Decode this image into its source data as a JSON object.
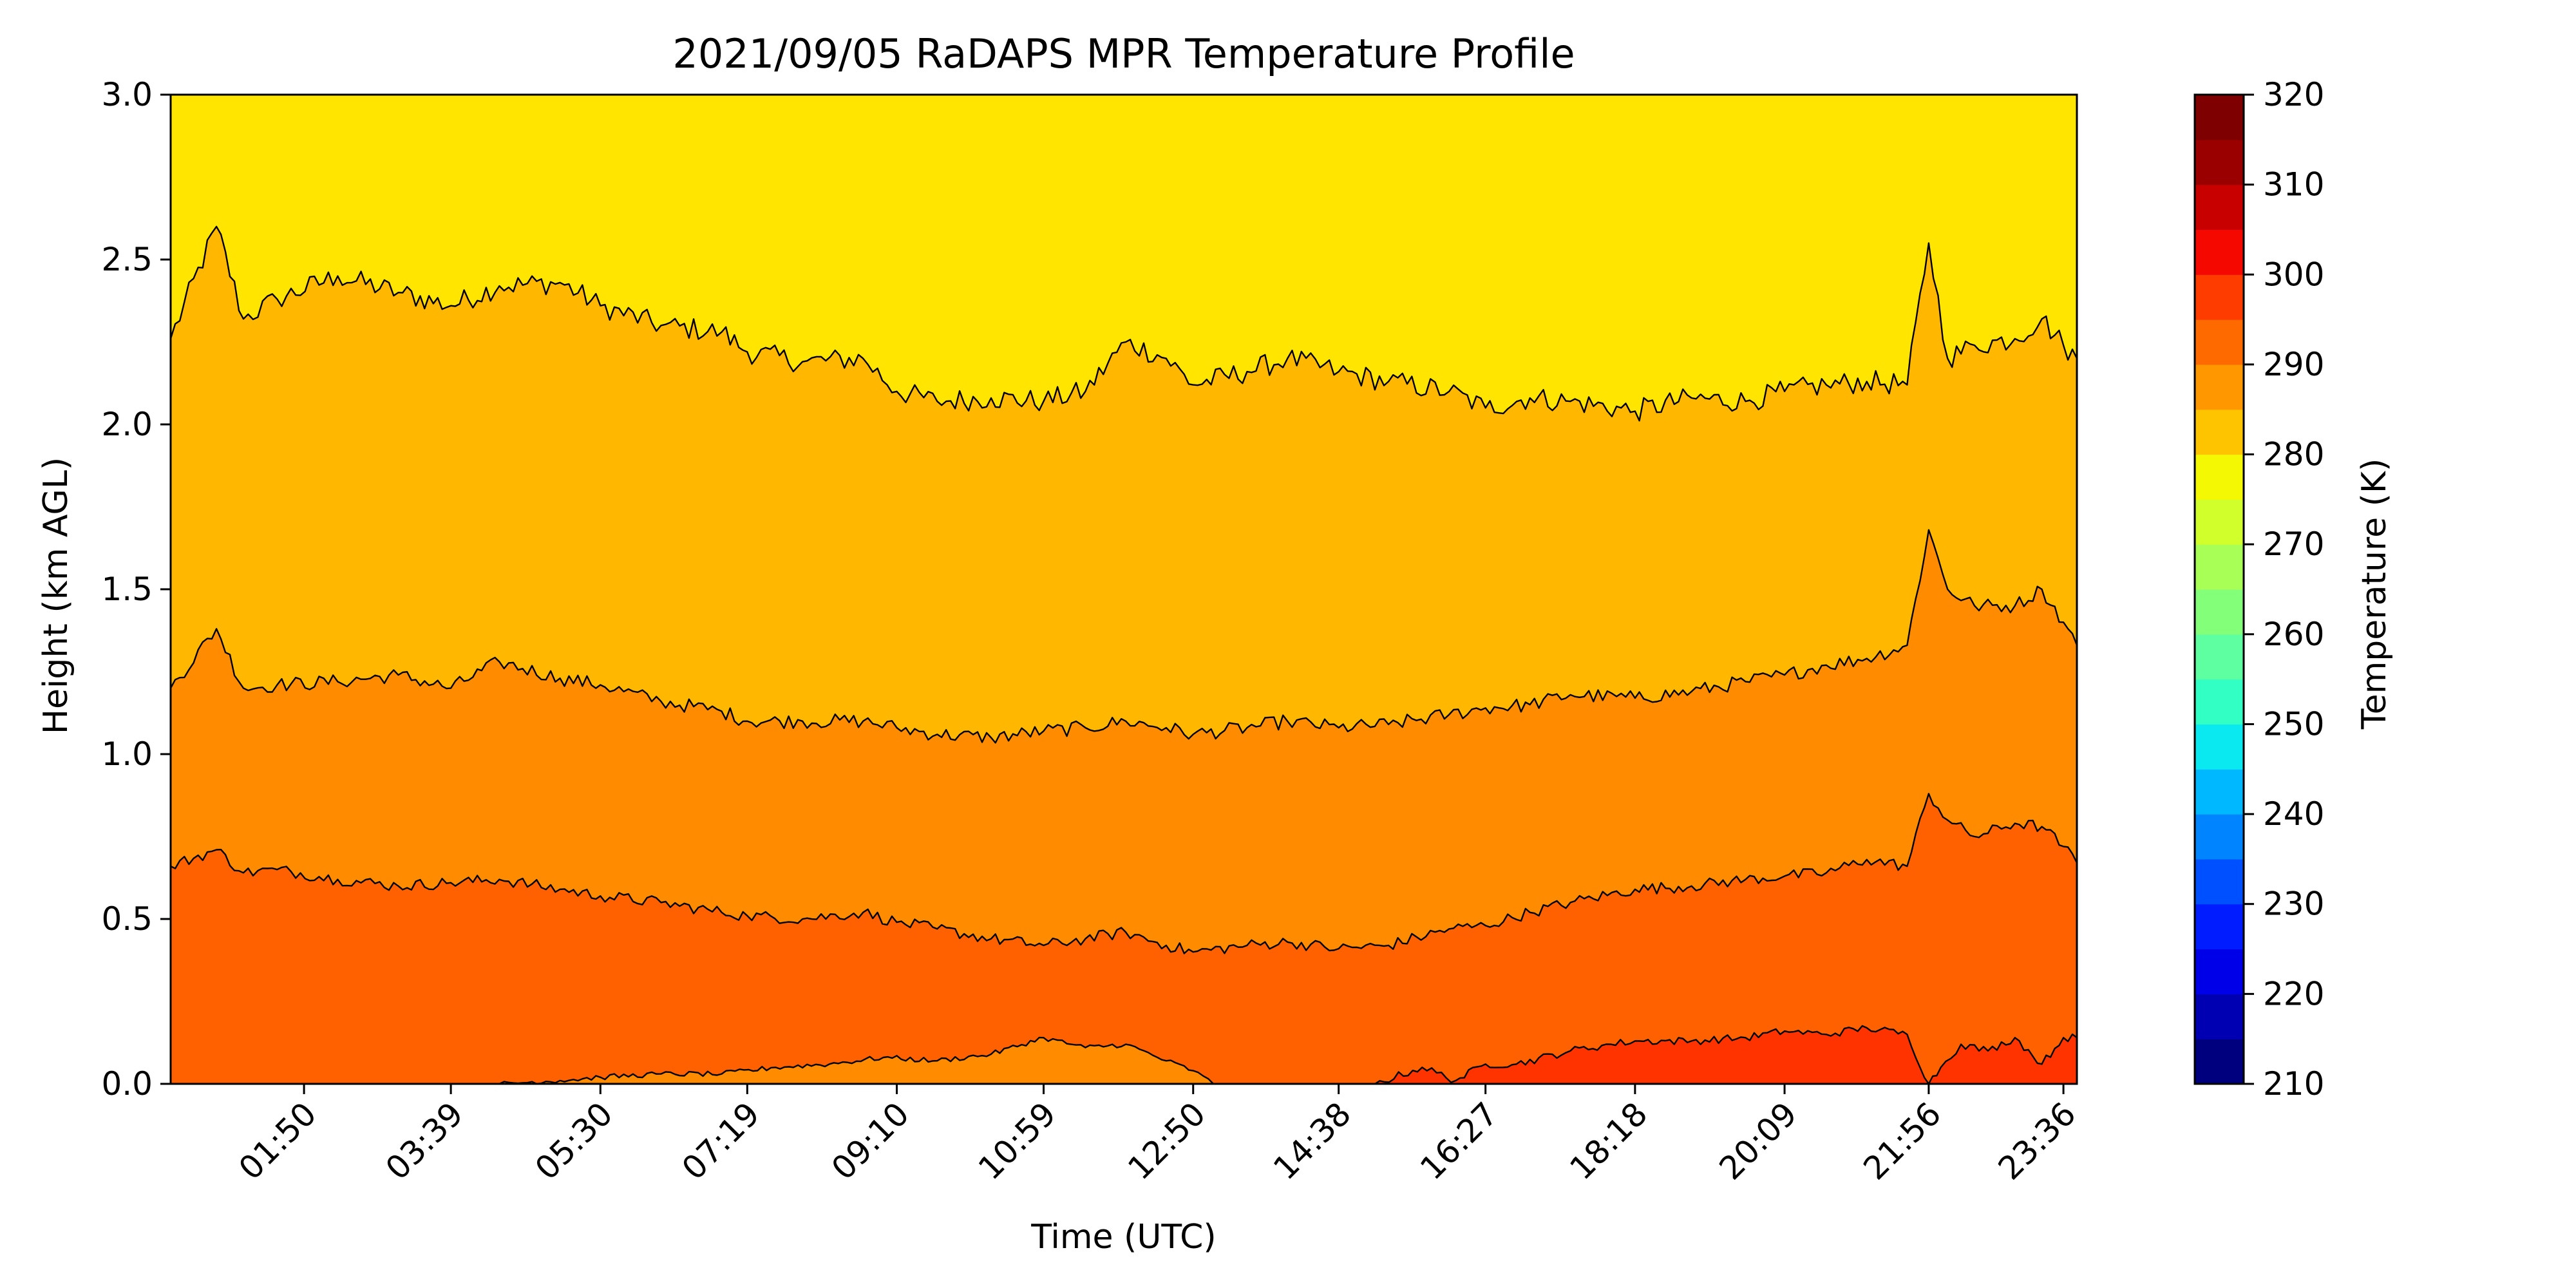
{
  "chart_data": {
    "type": "contour",
    "title": "2021/09/05 RaDAPS MPR Temperature Profile",
    "xlabel": "Time (UTC)",
    "ylabel": "Height (km AGL)",
    "xlim": [
      "00:11",
      "23:46"
    ],
    "ylim": [
      0.0,
      3.0
    ],
    "x_ticks": [
      "01:50",
      "03:39",
      "05:30",
      "07:19",
      "09:10",
      "10:59",
      "12:50",
      "14:38",
      "16:27",
      "18:18",
      "20:09",
      "21:56",
      "23:36"
    ],
    "y_ticks": [
      "0.0",
      "0.5",
      "1.0",
      "1.5",
      "2.0",
      "2.5",
      "3.0"
    ],
    "colorbar": {
      "label": "Temperature (K)",
      "range": [
        210,
        320
      ],
      "step": 5,
      "ticks": [
        "210",
        "220",
        "230",
        "240",
        "250",
        "260",
        "270",
        "280",
        "290",
        "300",
        "310",
        "320"
      ],
      "colors": [
        "#00007f",
        "#0000b2",
        "#0000e8",
        "#001cff",
        "#0050ff",
        "#0084ff",
        "#00b8ff",
        "#0ae8f0",
        "#32ffc4",
        "#5effa0",
        "#84ff7a",
        "#a8ff56",
        "#d0ff2c",
        "#f4f802",
        "#ffc400",
        "#ff9800",
        "#ff6a00",
        "#ff3c00",
        "#f40800",
        "#c80000",
        "#9a0000",
        "#7f0000"
      ]
    },
    "regions": [
      {
        "range_K": [
          280,
          285
        ],
        "color": "#ffe500"
      },
      {
        "range_K": [
          285,
          290
        ],
        "color": "#ffb700"
      },
      {
        "range_K": [
          290,
          295
        ],
        "color": "#ff8c00"
      },
      {
        "range_K": [
          295,
          300
        ],
        "color": "#ff6100"
      },
      {
        "range_K": [
          300,
          305
        ],
        "color": "#ff3300"
      }
    ],
    "contours": [
      {
        "level_K": 285,
        "x": [
          "00:11",
          "00:45",
          "01:05",
          "01:30",
          "02:15",
          "03:00",
          "03:39",
          "04:15",
          "05:00",
          "05:30",
          "06:15",
          "07:00",
          "07:19",
          "08:00",
          "08:45",
          "09:10",
          "09:40",
          "10:20",
          "10:59",
          "11:30",
          "12:00",
          "12:30",
          "12:50",
          "13:30",
          "14:00",
          "14:38",
          "15:15",
          "16:00",
          "16:27",
          "17:00",
          "17:30",
          "18:18",
          "19:00",
          "19:40",
          "20:09",
          "20:40",
          "21:10",
          "21:40",
          "21:56",
          "22:10",
          "22:30",
          "23:00",
          "23:20",
          "23:36",
          "23:46"
        ],
        "y": [
          2.26,
          2.6,
          2.32,
          2.38,
          2.45,
          2.4,
          2.36,
          2.42,
          2.43,
          2.36,
          2.3,
          2.28,
          2.22,
          2.19,
          2.2,
          2.1,
          2.07,
          2.08,
          2.07,
          2.1,
          2.25,
          2.2,
          2.12,
          2.16,
          2.2,
          2.16,
          2.13,
          2.1,
          2.05,
          2.08,
          2.07,
          2.04,
          2.08,
          2.07,
          2.1,
          2.12,
          2.13,
          2.12,
          2.55,
          2.2,
          2.24,
          2.26,
          2.32,
          2.24,
          2.2
        ]
      },
      {
        "level_K": 290,
        "x": [
          "00:11",
          "00:45",
          "01:05",
          "01:30",
          "02:15",
          "03:00",
          "03:39",
          "04:15",
          "05:00",
          "05:30",
          "06:15",
          "07:00",
          "07:19",
          "08:00",
          "08:45",
          "09:10",
          "09:40",
          "10:20",
          "10:59",
          "11:30",
          "12:00",
          "12:30",
          "12:50",
          "13:30",
          "14:00",
          "14:38",
          "15:15",
          "16:00",
          "16:27",
          "17:00",
          "17:30",
          "18:18",
          "19:00",
          "19:40",
          "20:09",
          "20:40",
          "21:10",
          "21:40",
          "21:56",
          "22:10",
          "22:30",
          "23:00",
          "23:20",
          "23:36",
          "23:46"
        ],
        "y": [
          1.2,
          1.38,
          1.2,
          1.21,
          1.22,
          1.24,
          1.2,
          1.28,
          1.23,
          1.21,
          1.16,
          1.13,
          1.1,
          1.1,
          1.1,
          1.08,
          1.06,
          1.05,
          1.07,
          1.08,
          1.1,
          1.08,
          1.06,
          1.08,
          1.1,
          1.08,
          1.09,
          1.12,
          1.14,
          1.15,
          1.18,
          1.17,
          1.19,
          1.22,
          1.24,
          1.27,
          1.29,
          1.33,
          1.68,
          1.5,
          1.45,
          1.45,
          1.5,
          1.4,
          1.33
        ]
      },
      {
        "level_K": 295,
        "x": [
          "00:11",
          "00:45",
          "01:05",
          "01:30",
          "02:15",
          "03:00",
          "03:39",
          "04:15",
          "05:00",
          "05:30",
          "06:15",
          "07:00",
          "07:19",
          "08:00",
          "08:45",
          "09:10",
          "09:40",
          "10:20",
          "10:59",
          "11:30",
          "12:00",
          "12:30",
          "12:50",
          "13:30",
          "14:00",
          "14:38",
          "15:15",
          "16:00",
          "16:27",
          "17:00",
          "17:30",
          "18:18",
          "19:00",
          "19:40",
          "20:09",
          "20:40",
          "21:10",
          "21:40",
          "21:56",
          "22:10",
          "22:30",
          "23:00",
          "23:20",
          "23:36",
          "23:46"
        ],
        "y": [
          0.66,
          0.71,
          0.64,
          0.65,
          0.62,
          0.6,
          0.61,
          0.62,
          0.59,
          0.57,
          0.55,
          0.52,
          0.51,
          0.5,
          0.52,
          0.49,
          0.47,
          0.44,
          0.42,
          0.44,
          0.46,
          0.42,
          0.4,
          0.42,
          0.43,
          0.41,
          0.42,
          0.47,
          0.48,
          0.52,
          0.55,
          0.59,
          0.6,
          0.62,
          0.63,
          0.64,
          0.68,
          0.66,
          0.88,
          0.8,
          0.75,
          0.79,
          0.78,
          0.72,
          0.67
        ]
      },
      {
        "level_K": 300,
        "x": [
          "15:05",
          "15:40",
          "16:05",
          "16:27",
          "16:50",
          "17:30",
          "18:00",
          "18:18",
          "19:00",
          "19:40",
          "20:09",
          "20:40",
          "21:10",
          "21:40",
          "21:56",
          "22:05",
          "22:20",
          "22:40",
          "23:00",
          "23:20",
          "23:36",
          "23:46"
        ],
        "y": [
          0.0,
          0.05,
          0.01,
          0.06,
          0.06,
          0.1,
          0.12,
          0.13,
          0.13,
          0.14,
          0.16,
          0.15,
          0.17,
          0.15,
          0.0,
          0.05,
          0.12,
          0.1,
          0.14,
          0.06,
          0.14,
          0.14
        ]
      },
      {
        "level_K": 290,
        "x": [
          "04:15",
          "05:00",
          "05:30",
          "06:15",
          "07:00",
          "07:40",
          "08:20",
          "09:00",
          "09:40",
          "10:20",
          "10:59",
          "11:30",
          "12:00",
          "12:30",
          "12:50",
          "13:05"
        ],
        "y": [
          0.0,
          0.01,
          0.02,
          0.03,
          0.03,
          0.05,
          0.06,
          0.08,
          0.07,
          0.09,
          0.14,
          0.11,
          0.12,
          0.07,
          0.04,
          0.0
        ]
      }
    ]
  }
}
